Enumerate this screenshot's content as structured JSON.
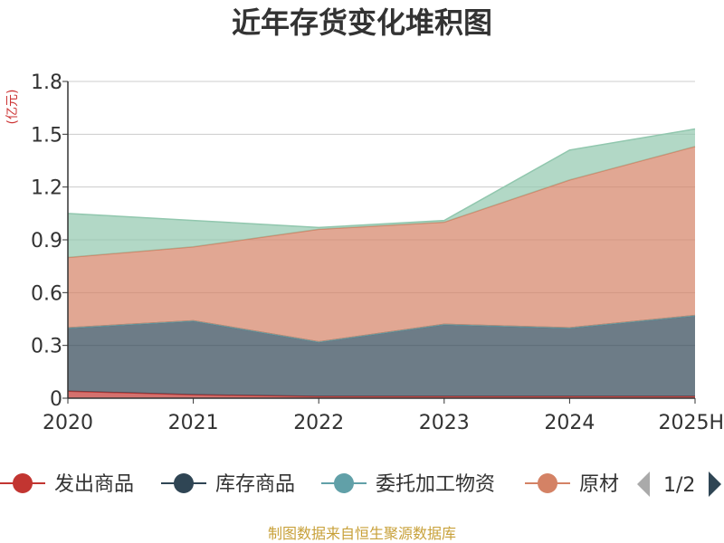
{
  "chart_data": {
    "type": "area",
    "stacked": true,
    "title": "近年存货变化堆积图",
    "y_unit": "(亿元)",
    "categories": [
      "2020",
      "2021",
      "2022",
      "2023",
      "2024",
      "2025H"
    ],
    "ylim": [
      0,
      1.8
    ],
    "yticks": [
      "0",
      "0.3",
      "0.6",
      "0.9",
      "1.2",
      "1.5",
      "1.8"
    ],
    "grid": true,
    "series": [
      {
        "name": "发出商品",
        "color": "#c23531",
        "values": [
          0.04,
          0.02,
          0.01,
          0.01,
          0.01,
          0.01
        ]
      },
      {
        "name": "库存商品",
        "color": "#2f4554",
        "values": [
          0.36,
          0.42,
          0.31,
          0.41,
          0.39,
          0.46
        ]
      },
      {
        "name": "委托加工物资",
        "color": "#61a0a8",
        "values": [
          0.0,
          0.0,
          0.0,
          0.0,
          0.0,
          0.0
        ]
      },
      {
        "name": "原材料",
        "color": "#d48265",
        "values": [
          0.4,
          0.42,
          0.64,
          0.58,
          0.84,
          0.96
        ]
      },
      {
        "name": "",
        "color": "#91c7ae",
        "values": [
          0.25,
          0.15,
          0.01,
          0.01,
          0.17,
          0.1
        ]
      }
    ],
    "legend": {
      "position": "bottom",
      "visible_items": [
        "发出商品",
        "库存商品",
        "委托加工物资",
        "原材"
      ],
      "page": "1/2"
    }
  },
  "footer": {
    "source": "制图数据来自恒生聚源数据库"
  }
}
